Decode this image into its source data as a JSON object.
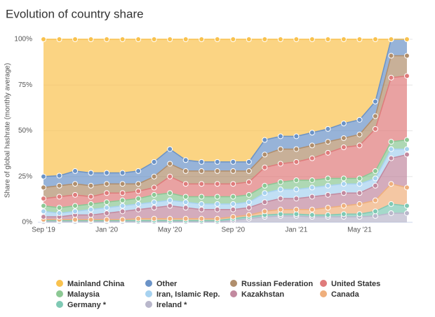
{
  "chart_data": {
    "type": "stacked-area",
    "title": "Evolution of country share",
    "ylabel": "Share of global hashrate (monthly average)",
    "categories": [
      "Sep '19",
      null,
      null,
      null,
      "Jan '20",
      null,
      null,
      null,
      "May '20",
      null,
      null,
      null,
      "Sep '20",
      null,
      null,
      null,
      "Jan '21",
      null,
      null,
      null,
      "May '21",
      null,
      null,
      null
    ],
    "ylim": [
      0,
      100
    ],
    "yticks": [
      {
        "value": 0,
        "label": "0%"
      },
      {
        "value": 25,
        "label": "25%"
      },
      {
        "value": 50,
        "label": "50%"
      },
      {
        "value": 75,
        "label": "75%"
      },
      {
        "value": 100,
        "label": "100%"
      }
    ],
    "grid": true,
    "series": [
      {
        "name": "Mainland China",
        "color": "#f9c24e",
        "values": [
          75,
          74.5,
          72,
          73,
          73,
          73,
          72,
          67,
          60,
          66,
          67,
          67,
          67,
          67,
          55,
          53,
          53,
          51,
          49,
          46,
          44,
          34,
          0,
          0
        ]
      },
      {
        "name": "Other",
        "color": "#6b93c7",
        "values": [
          6,
          5.5,
          7,
          7,
          6,
          6,
          7,
          8,
          8,
          6,
          5,
          5,
          5,
          5,
          8,
          7,
          7,
          7,
          7,
          8,
          8,
          8,
          9,
          9
        ]
      },
      {
        "name": "Russian Federation",
        "color": "#b08e6c",
        "values": [
          6,
          6,
          6,
          6,
          5,
          5,
          4,
          6,
          7,
          7,
          7,
          7,
          7,
          6,
          7,
          8,
          7,
          7,
          6,
          5,
          6,
          7,
          12,
          11
        ]
      },
      {
        "name": "United States",
        "color": "#df7b7b",
        "values": [
          4,
          6,
          6,
          4,
          5,
          4,
          4,
          4,
          9,
          7,
          7,
          7,
          7,
          7,
          10,
          10,
          10,
          12,
          14,
          17,
          18,
          23,
          35,
          35
        ]
      },
      {
        "name": "Malaysia",
        "color": "#8cc894",
        "values": [
          3,
          3,
          3,
          3,
          3,
          3,
          3,
          4,
          4,
          3,
          4,
          4,
          4,
          4,
          4,
          4,
          5,
          4,
          4,
          3,
          3,
          4,
          4,
          5
        ]
      },
      {
        "name": "Iran, Islamic Rep.",
        "color": "#a7d2f0",
        "values": [
          3,
          2,
          2,
          3,
          3,
          3,
          3,
          3,
          3,
          3,
          3,
          3,
          3,
          3,
          5,
          5,
          5,
          5,
          5,
          5,
          5,
          4,
          5,
          3
        ]
      },
      {
        "name": "Kazakhstan",
        "color": "#c2899f",
        "values": [
          1.5,
          1.5,
          2.5,
          2.5,
          3.5,
          4.5,
          5,
          6,
          7,
          6,
          5,
          5,
          4,
          4,
          5,
          6,
          6,
          7,
          7,
          7,
          6,
          8,
          14,
          18
        ]
      },
      {
        "name": "Canada",
        "color": "#efaf7c",
        "values": [
          0.5,
          0.5,
          0.5,
          0.5,
          0.5,
          0.5,
          1,
          1,
          1,
          1,
          1,
          1,
          1,
          1,
          2,
          2.5,
          2.5,
          3,
          4,
          4.5,
          5.5,
          6,
          11,
          10
        ]
      },
      {
        "name": "Germany *",
        "color": "#7fc9b4",
        "values": [
          0.7,
          0.7,
          0.7,
          0.7,
          0.7,
          0.7,
          0.7,
          0.7,
          0.7,
          0.7,
          0.7,
          0.7,
          1,
          1,
          1,
          1,
          1,
          1,
          1,
          1.5,
          1.5,
          2.5,
          5,
          4
        ]
      },
      {
        "name": "Ireland *",
        "color": "#b9b7cb",
        "values": [
          0.3,
          0.3,
          0.3,
          0.3,
          0.3,
          0.3,
          0.3,
          0.3,
          0.3,
          0.3,
          0.3,
          0.3,
          1,
          2,
          3,
          3.5,
          3.5,
          3,
          3,
          3,
          3,
          3.5,
          5,
          5
        ]
      }
    ]
  }
}
